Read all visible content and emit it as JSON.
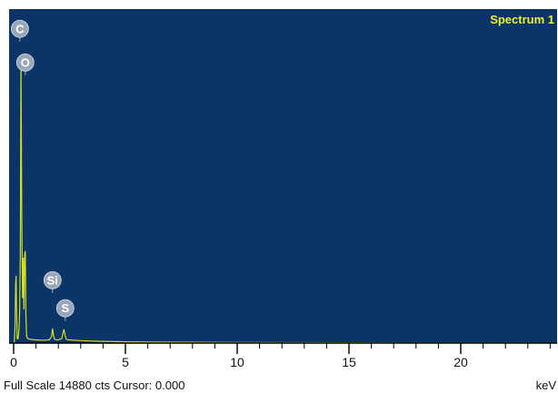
{
  "colors": {
    "plot_background": "#0b3467",
    "spectrum_line": "#d7df23",
    "title_text": "#f1ef2e",
    "label_badge": "#9aa7b8",
    "axis": "#000000"
  },
  "chart_data": {
    "type": "line",
    "title": "Spectrum 1",
    "xlabel": "keV",
    "ylabel": "",
    "xlim": [
      -0.2,
      24.8
    ],
    "ylim": [
      0,
      14880
    ],
    "xticks": [
      0,
      5,
      10,
      15,
      20
    ],
    "xtick_labels": [
      "0",
      "5",
      "10",
      "15",
      "20"
    ],
    "grid": false,
    "series": [
      {
        "x": [
          0.0,
          0.03,
          0.06,
          0.09,
          0.11,
          0.13,
          0.16,
          0.2,
          0.24,
          0.27,
          0.3,
          0.33,
          0.36,
          0.4,
          0.43,
          0.46,
          0.49,
          0.52,
          0.55,
          0.58,
          0.61,
          0.64,
          0.68,
          0.72,
          0.76,
          0.8,
          0.85,
          0.9,
          1.0,
          1.2,
          1.4,
          1.6,
          1.7,
          1.74,
          1.78,
          1.82,
          1.86,
          1.9,
          2.0,
          2.15,
          2.25,
          2.3,
          2.35,
          2.4,
          2.5,
          2.7,
          3.0,
          3.5,
          4.0,
          5.0,
          6.0,
          8.0,
          10.0,
          12.0,
          15.0,
          18.0,
          20.0,
          22.0,
          24.6
        ],
        "y": [
          0,
          0,
          700,
          2600,
          3000,
          1500,
          200,
          200,
          600,
          1400,
          4100,
          12550,
          5800,
          2000,
          3800,
          1500,
          3900,
          4100,
          1200,
          300,
          250,
          200,
          180,
          170,
          165,
          160,
          160,
          150,
          140,
          130,
          130,
          150,
          300,
          650,
          350,
          180,
          160,
          150,
          140,
          200,
          620,
          360,
          180,
          150,
          140,
          130,
          110,
          90,
          75,
          55,
          45,
          35,
          25,
          20,
          15,
          10,
          8,
          5,
          0
        ]
      }
    ],
    "annotations": [
      {
        "label": "C",
        "x": 0.28,
        "y": 14000
      },
      {
        "label": "O",
        "x": 0.52,
        "y": 12500
      },
      {
        "label": "Si",
        "x": 1.74,
        "y": 2800
      },
      {
        "label": "S",
        "x": 2.31,
        "y": 1550
      }
    ]
  },
  "status": {
    "full_scale_text": "Full Scale 14880 cts Cursor: 0.000",
    "unit_label": "keV"
  }
}
